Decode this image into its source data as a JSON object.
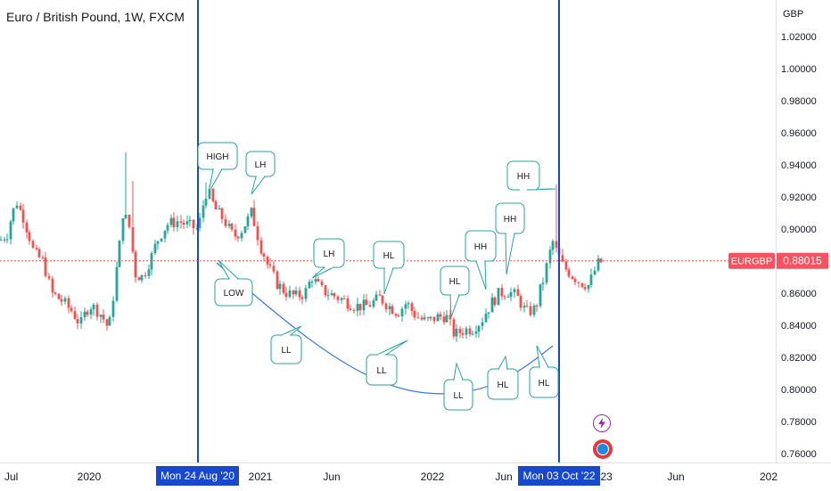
{
  "title": "Euro / British Pound, 1W, FXCM",
  "currency": "GBP",
  "symbol_badge": "EURGBP",
  "price_badge": "0.88015",
  "date_markers": [
    "Mon 24 Aug '20",
    "Mon 03 Oct '22"
  ],
  "colors": {
    "up": "#26a69a",
    "down": "#ef5350",
    "line": "#1848cc",
    "curve": "#3a75e8",
    "bubble": "#26a69a",
    "badge": "#f7525f",
    "price_line": "#ef5350"
  },
  "chart_data": {
    "type": "candlestick",
    "y_axis": {
      "ticks": [
        "1.02000",
        "1.00000",
        "0.98000",
        "0.96000",
        "0.94000",
        "0.92000",
        "0.90000",
        "0.88000",
        "0.86000",
        "0.84000",
        "0.82000",
        "0.80000",
        "0.78000",
        "0.76000"
      ],
      "range": [
        0.758,
        1.035
      ]
    },
    "x_axis": {
      "ticks": [
        "Jul",
        "2020",
        "2021",
        "Jun",
        "2022",
        "Jun",
        "'23",
        "Jun",
        "202"
      ]
    },
    "annotations": [
      "HIGH",
      "LH",
      "LOW",
      "LL",
      "LH",
      "HL",
      "LL",
      "HL",
      "LL",
      "HH",
      "HH",
      "HL",
      "HL",
      "HH"
    ],
    "last_price": 0.88015
  }
}
